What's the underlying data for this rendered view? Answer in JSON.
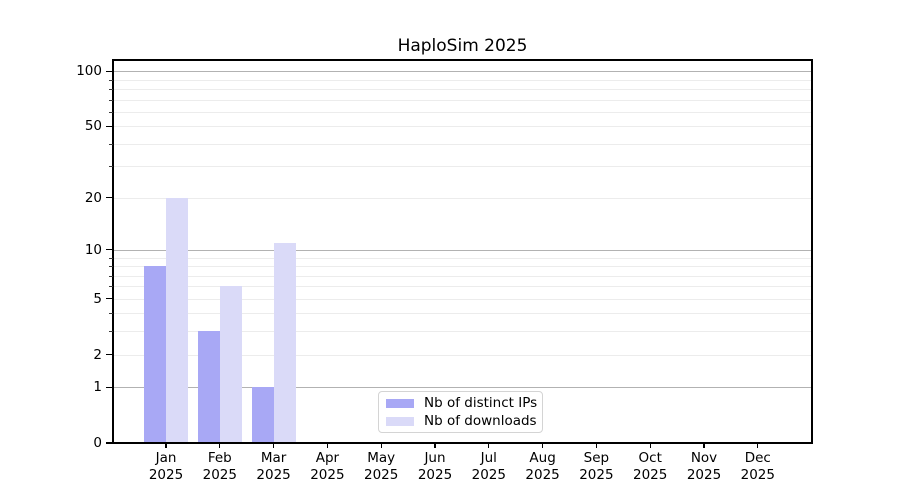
{
  "chart_data": {
    "type": "bar",
    "title": "HaploSim 2025",
    "x_year": "2025",
    "categories": [
      "Jan",
      "Feb",
      "Mar",
      "Apr",
      "May",
      "Jun",
      "Jul",
      "Aug",
      "Sep",
      "Oct",
      "Nov",
      "Dec"
    ],
    "series": [
      {
        "name": "Nb of distinct IPs",
        "color": "#a8a8f5",
        "values": [
          8,
          3,
          1,
          0,
          0,
          0,
          0,
          0,
          0,
          0,
          0,
          0
        ]
      },
      {
        "name": "Nb of downloads",
        "color": "#dadaf8",
        "values": [
          20,
          6,
          11,
          0,
          0,
          0,
          0,
          0,
          0,
          0,
          0,
          0
        ]
      }
    ],
    "yscale": "log1p",
    "ylim": [
      0,
      115
    ],
    "yticks": [
      0,
      1,
      2,
      5,
      10,
      20,
      50,
      100
    ],
    "yticks_minor": [
      3,
      4,
      6,
      7,
      8,
      9,
      30,
      40,
      60,
      70,
      80,
      90
    ],
    "major_grid_at": [
      1,
      10,
      100
    ],
    "minor_grid_at": [
      2,
      3,
      4,
      5,
      6,
      7,
      8,
      9,
      20,
      30,
      40,
      50,
      60,
      70,
      80,
      90
    ],
    "grid": true,
    "legend_position": "inside-bottom-center"
  },
  "colors": {
    "background": "#ffffff",
    "axis": "#000000",
    "major_grid": "#b2b2b2",
    "minor_grid": "#ececec",
    "legend_border": "#d4d4d4",
    "bar_distinct_ips": "#a8a8f5",
    "bar_downloads": "#dadaf8"
  }
}
